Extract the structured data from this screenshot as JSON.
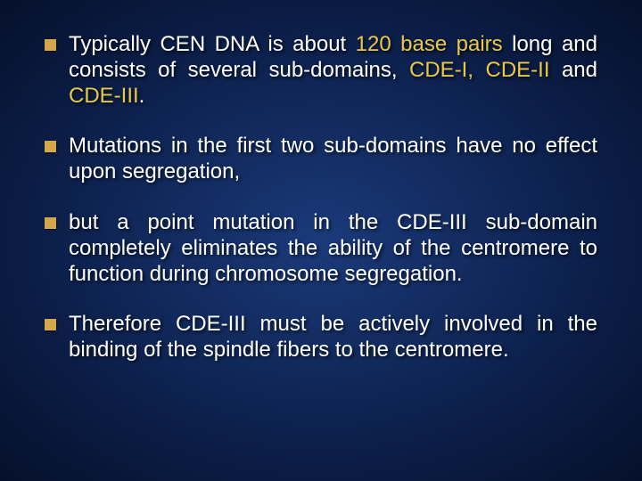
{
  "slide": {
    "background_gradient": [
      "#1a3a7a",
      "#0c1f4a",
      "#05102b"
    ],
    "bullet_color": "#d4a84a",
    "text_color": "#ffffff",
    "highlight_color": "#e8c84a",
    "font_size_pt": 24,
    "bullets": [
      {
        "pre": "Typically CEN DNA is about ",
        "hl1": "120 base pairs",
        "mid": " long and consists of several sub-domains, ",
        "hl2": "CDE-I, CDE-II ",
        "mid2": "and ",
        "hl3": "CDE-III",
        "post": "."
      },
      {
        "text": "Mutations in the first two sub-domains have no effect upon segregation,"
      },
      {
        "text": " but a point mutation in the CDE-III sub-domain completely eliminates the ability of the centromere to function during chromosome segregation."
      },
      {
        "text": "Therefore CDE-III must be actively involved in the binding of the spindle fibers to the centromere."
      }
    ]
  }
}
